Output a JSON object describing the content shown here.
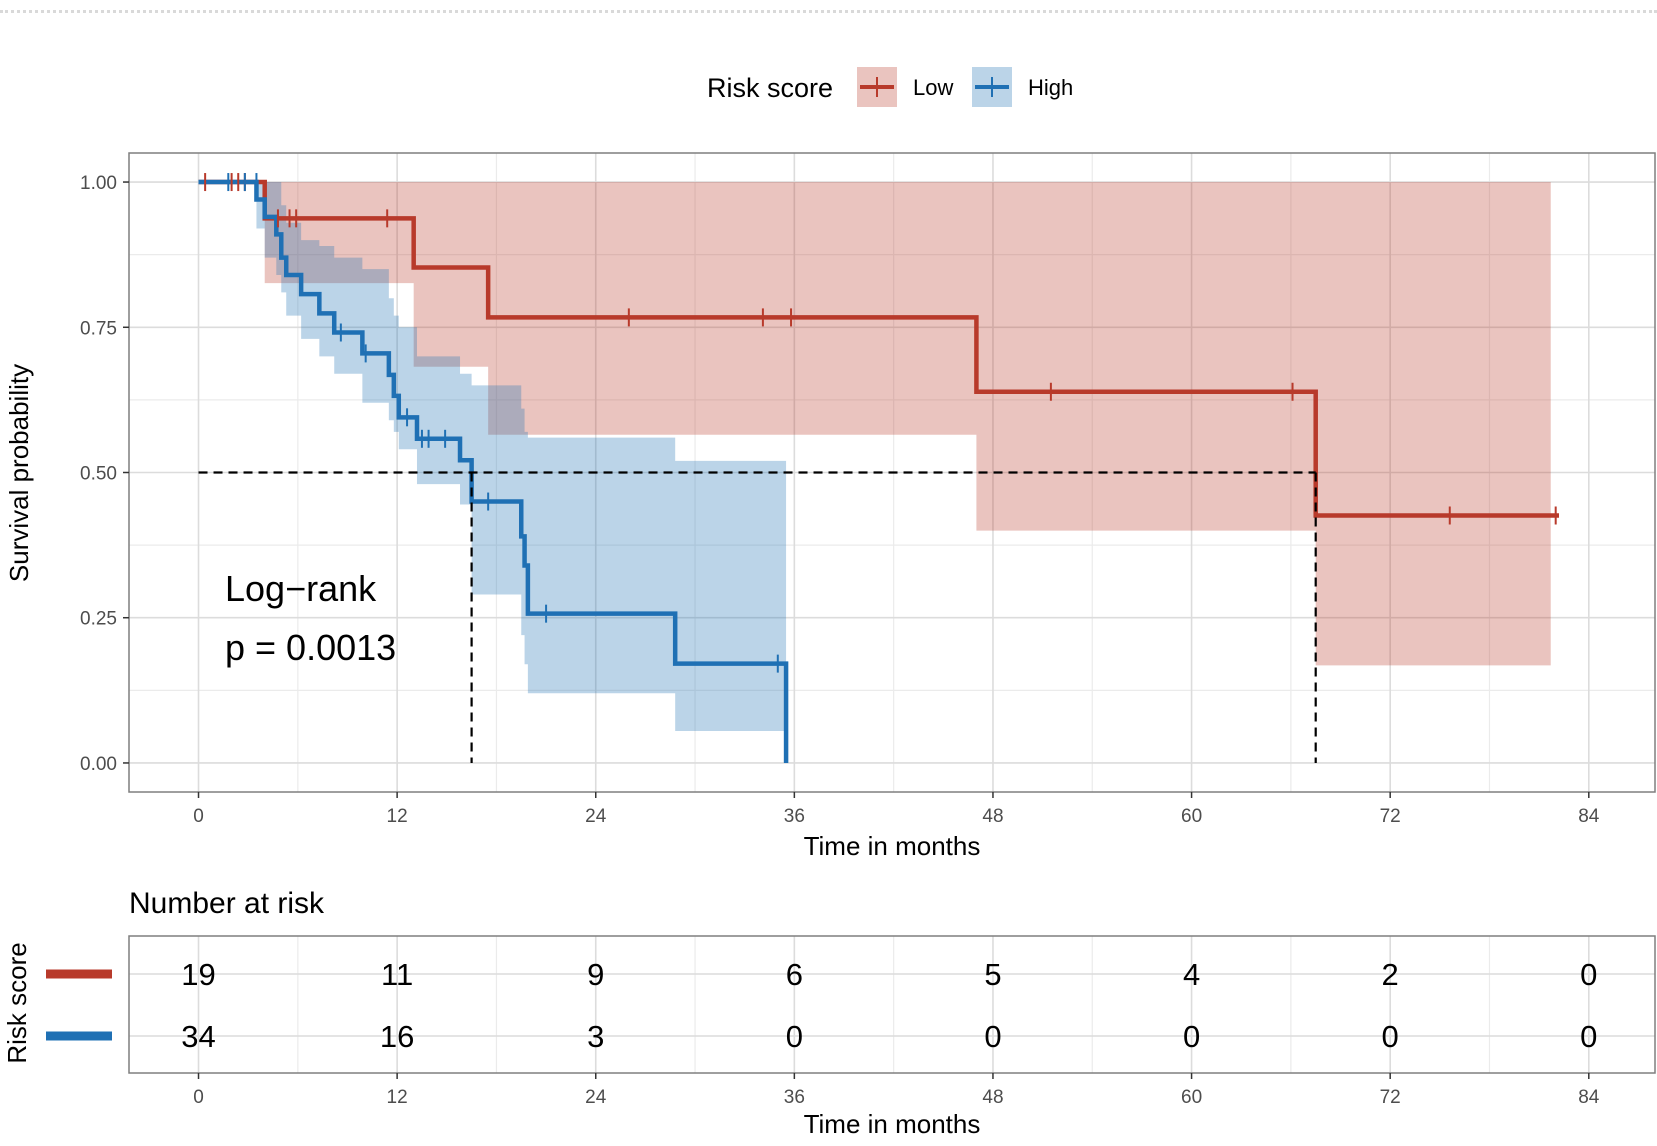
{
  "chart_data": {
    "type": "line",
    "subtype": "kaplan-meier",
    "xlabel": "Time in months",
    "ylabel": "Survival probability",
    "xlim": [
      -4.2,
      88
    ],
    "ylim": [
      -0.05,
      1.05
    ],
    "x_ticks": [
      0,
      12,
      24,
      36,
      48,
      60,
      72,
      84
    ],
    "y_ticks": [
      0,
      0.25,
      0.5,
      0.75,
      1.0
    ],
    "y_tick_labels": [
      "0.00",
      "0.25",
      "0.50",
      "0.75",
      "1.00"
    ],
    "grid": true,
    "legend": {
      "title": "Risk score",
      "position": "top",
      "entries": [
        "Low",
        "High"
      ]
    },
    "annotation": [
      "Log−rank",
      "p = 0.0013"
    ],
    "median_line": {
      "y": 0.5,
      "x_end": 67.5,
      "drops": [
        16.5,
        67.5
      ]
    },
    "series": [
      {
        "name": "Low",
        "color": "#b83a2b",
        "steps": [
          [
            0,
            1.0
          ],
          [
            4,
            0.9375
          ],
          [
            13,
            0.853
          ],
          [
            17.5,
            0.767
          ],
          [
            47,
            0.639
          ],
          [
            67.5,
            0.426
          ],
          [
            82.2,
            0.426
          ]
        ],
        "ci_steps": [
          [
            0,
            1.0,
            1.0
          ],
          [
            4,
            0.826,
            1.0
          ],
          [
            13,
            0.682,
            1.0
          ],
          [
            17.5,
            0.565,
            1.0
          ],
          [
            47,
            0.4,
            1.0
          ],
          [
            67.5,
            0.168,
            1.0
          ],
          [
            81.7,
            0.168,
            1.0
          ]
        ],
        "censors": [
          [
            0.4,
            1.0
          ],
          [
            2.0,
            1.0
          ],
          [
            2.4,
            1.0
          ],
          [
            2.8,
            1.0
          ],
          [
            4.8,
            0.9375
          ],
          [
            5.5,
            0.9375
          ],
          [
            5.9,
            0.9375
          ],
          [
            11.4,
            0.9375
          ],
          [
            26,
            0.767
          ],
          [
            34.1,
            0.767
          ],
          [
            35.8,
            0.767
          ],
          [
            51.5,
            0.639
          ],
          [
            66.1,
            0.639
          ],
          [
            75.6,
            0.426
          ],
          [
            82.0,
            0.426
          ]
        ]
      },
      {
        "name": "High",
        "color": "#1f70b4",
        "steps": [
          [
            0,
            1.0
          ],
          [
            3.5,
            0.97
          ],
          [
            4,
            0.94
          ],
          [
            4.7,
            0.91
          ],
          [
            5.0,
            0.87
          ],
          [
            5.3,
            0.84
          ],
          [
            6.2,
            0.807
          ],
          [
            7.3,
            0.774
          ],
          [
            8.2,
            0.741
          ],
          [
            9.9,
            0.705
          ],
          [
            11.5,
            0.668
          ],
          [
            11.8,
            0.632
          ],
          [
            12.1,
            0.595
          ],
          [
            13.2,
            0.558
          ],
          [
            15.8,
            0.521
          ],
          [
            16.5,
            0.45
          ],
          [
            19.5,
            0.39
          ],
          [
            19.7,
            0.34
          ],
          [
            19.9,
            0.257
          ],
          [
            28.8,
            0.171
          ],
          [
            35.5,
            0.0
          ]
        ],
        "ci_steps": [
          [
            0,
            1.0,
            1.0
          ],
          [
            3.5,
            0.92,
            1.0
          ],
          [
            4,
            0.87,
            1.0
          ],
          [
            4.7,
            0.84,
            1.0
          ],
          [
            5.0,
            0.81,
            0.96
          ],
          [
            5.3,
            0.77,
            0.93
          ],
          [
            6.2,
            0.73,
            0.9
          ],
          [
            7.3,
            0.7,
            0.89
          ],
          [
            8.2,
            0.67,
            0.87
          ],
          [
            9.9,
            0.62,
            0.85
          ],
          [
            11.5,
            0.59,
            0.8
          ],
          [
            11.8,
            0.57,
            0.77
          ],
          [
            12.1,
            0.54,
            0.75
          ],
          [
            13.2,
            0.48,
            0.7
          ],
          [
            15.8,
            0.445,
            0.67
          ],
          [
            16.5,
            0.29,
            0.65
          ],
          [
            19.5,
            0.22,
            0.61
          ],
          [
            19.7,
            0.17,
            0.57
          ],
          [
            19.9,
            0.12,
            0.56
          ],
          [
            28.8,
            0.055,
            0.52
          ],
          [
            35.5,
            0.055,
            0.52
          ]
        ],
        "censors": [
          [
            1.8,
            1.0
          ],
          [
            2.8,
            1.0
          ],
          [
            3.5,
            1.0
          ],
          [
            8.6,
            0.741
          ],
          [
            10.1,
            0.705
          ],
          [
            12.6,
            0.595
          ],
          [
            13.5,
            0.558
          ],
          [
            13.9,
            0.558
          ],
          [
            14.9,
            0.558
          ],
          [
            17.5,
            0.45
          ],
          [
            21.0,
            0.257
          ],
          [
            35.0,
            0.171
          ]
        ]
      }
    ],
    "risk_table": {
      "title": "Number at risk",
      "strata_label": "Risk score",
      "xlabel": "Time in months",
      "x_ticks": [
        0,
        12,
        24,
        36,
        48,
        60,
        72,
        84
      ],
      "rows": [
        {
          "name": "Low",
          "color": "#b83a2b",
          "values": [
            19,
            11,
            9,
            6,
            5,
            4,
            2,
            0
          ]
        },
        {
          "name": "High",
          "color": "#1f70b4",
          "values": [
            34,
            16,
            3,
            0,
            0,
            0,
            0,
            0
          ]
        }
      ]
    }
  }
}
